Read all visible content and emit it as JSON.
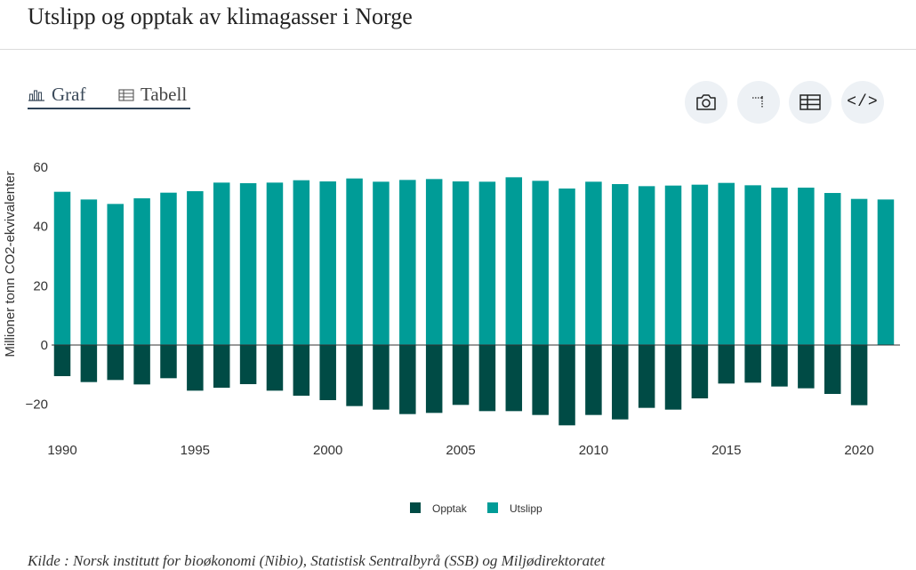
{
  "page": {
    "title": "Utslipp og opptak av klimagasser i Norge",
    "source": "Kilde : Norsk institutt for bioøkonomi (Nibio), Statistisk Sentralbyrå (SSB) og Miljødirektoratet"
  },
  "tabs": [
    {
      "label": "Graf",
      "icon": "bar-chart-icon",
      "active": true
    },
    {
      "label": "Tabell",
      "icon": "table-icon",
      "active": false
    }
  ],
  "toolbar": {
    "camera": {
      "icon": "camera-icon"
    },
    "crop": {
      "icon": "crop-icon"
    },
    "table": {
      "icon": "table-grid-icon"
    },
    "embed": {
      "icon": "code-icon",
      "glyph": "</>"
    }
  },
  "colors": {
    "opptak": "#004b45",
    "utslipp": "#009c97"
  },
  "chart_data": {
    "type": "bar",
    "stacked": true,
    "ylabel": "Millioner tonn CO2-ekvivalenter",
    "xlabel": "",
    "ylim": [
      -30,
      62
    ],
    "yticks": [
      -20,
      0,
      20,
      40,
      60
    ],
    "xticks": [
      1990,
      1995,
      2000,
      2005,
      2010,
      2015,
      2020
    ],
    "x": [
      1990,
      1991,
      1992,
      1993,
      1994,
      1995,
      1996,
      1997,
      1998,
      1999,
      2000,
      2001,
      2002,
      2003,
      2004,
      2005,
      2006,
      2007,
      2008,
      2009,
      2010,
      2011,
      2012,
      2013,
      2014,
      2015,
      2016,
      2017,
      2018,
      2019,
      2020,
      2021
    ],
    "series": [
      {
        "name": "Opptak",
        "color": "#004b45",
        "values": [
          -10.5,
          -12.5,
          -11.8,
          -13.3,
          -11.2,
          -15.4,
          -14.4,
          -13.2,
          -15.4,
          -17.1,
          -18.6,
          -20.6,
          -21.8,
          -23.3,
          -22.9,
          -20.2,
          -22.3,
          -22.3,
          -23.6,
          -27.1,
          -23.6,
          -25.1,
          -21.2,
          -21.8,
          -18.0,
          -13.0,
          -12.7,
          -14.0,
          -14.6,
          -16.5,
          -20.3,
          null
        ]
      },
      {
        "name": "Utslipp",
        "color": "#009c97",
        "values": [
          51.7,
          49.1,
          47.6,
          49.5,
          51.4,
          51.9,
          54.8,
          54.6,
          54.8,
          55.6,
          55.2,
          56.2,
          55.1,
          55.7,
          56.0,
          55.2,
          55.1,
          56.6,
          55.4,
          52.8,
          55.1,
          54.3,
          53.6,
          53.8,
          54.1,
          54.7,
          53.9,
          53.1,
          53.1,
          51.3,
          49.3,
          49.1
        ]
      }
    ],
    "legend": {
      "position": "bottom-center",
      "items": [
        "Opptak",
        "Utslipp"
      ]
    }
  }
}
